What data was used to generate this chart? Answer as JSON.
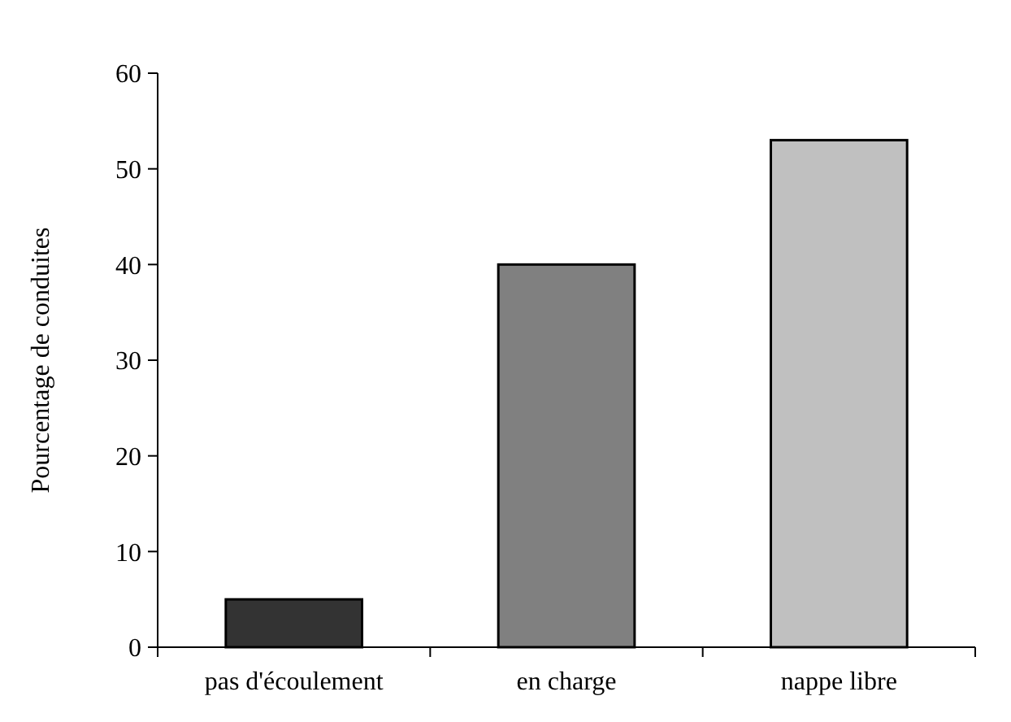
{
  "chart_data": {
    "type": "bar",
    "ylabel": "Pourcentage de conduites",
    "categories": [
      "pas d'écoulement",
      "en charge",
      "nappe libre"
    ],
    "values": [
      5,
      40,
      53
    ],
    "colors": [
      "#333333",
      "#808080",
      "#c0c0c0"
    ],
    "ylim": [
      0,
      60
    ],
    "yticks": [
      0,
      10,
      20,
      30,
      40,
      50,
      60
    ],
    "grid": false
  }
}
